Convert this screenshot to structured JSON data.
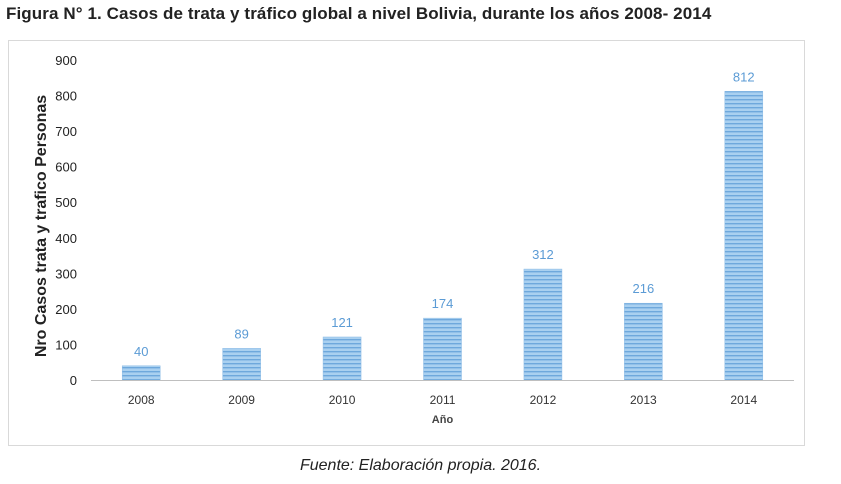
{
  "figure": {
    "title": "Figura N° 1. Casos de trata y tráfico global a nivel Bolivia, durante los años 2008- 2014",
    "caption": "Fuente: Elaboración propia. 2016."
  },
  "colors": {
    "bar_fill": "#9cc7eb",
    "bar_stripe": "#5b9bd5",
    "value_label": "#5b9bd5",
    "axis": "#bfbfbf"
  },
  "chart_data": {
    "type": "bar",
    "title": "Figura N° 1. Casos de trata y tráfico global a nivel Bolivia, durante los años 2008- 2014",
    "xlabel": "Año",
    "ylabel": "Nro Casos trata y trafico Personas",
    "categories": [
      "2008",
      "2009",
      "2010",
      "2011",
      "2012",
      "2013",
      "2014"
    ],
    "values": [
      40,
      89,
      121,
      174,
      312,
      216,
      812
    ],
    "ylim": [
      0,
      900
    ],
    "yticks": [
      0,
      100,
      200,
      300,
      400,
      500,
      600,
      700,
      800,
      900
    ],
    "grid": false,
    "data_labels": [
      "40",
      "89",
      "121",
      "174",
      "312",
      "216",
      "812"
    ]
  }
}
